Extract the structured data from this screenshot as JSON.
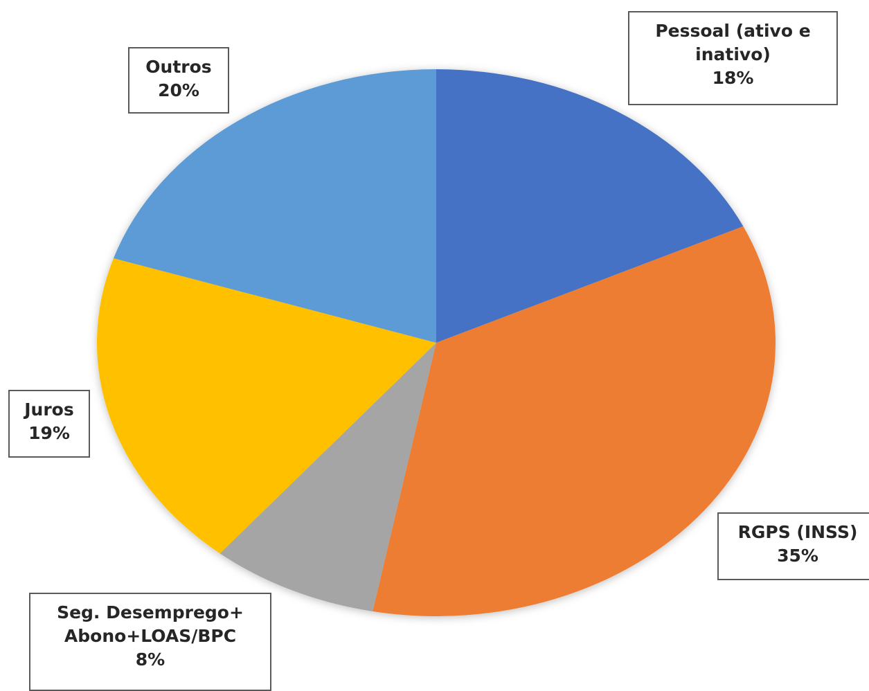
{
  "chart_data": {
    "type": "pie",
    "slices": [
      {
        "name": "Pessoal (ativo e inativo)",
        "label_lines": [
          "Pessoal (ativo e",
          "inativo)"
        ],
        "value": 18,
        "value_label": "18%",
        "color": "#4472C4"
      },
      {
        "name": "RGPS (INSS)",
        "label_lines": [
          "RGPS (INSS)"
        ],
        "value": 35,
        "value_label": "35%",
        "color": "#ED7D31"
      },
      {
        "name": "Seg. Desemprego+ Abono+LOAS/BPC",
        "label_lines": [
          "Seg. Desemprego+",
          "Abono+LOAS/BPC"
        ],
        "value": 8,
        "value_label": "8%",
        "color": "#A5A5A5"
      },
      {
        "name": "Juros",
        "label_lines": [
          "Juros"
        ],
        "value": 19,
        "value_label": "19%",
        "color": "#FFC000"
      },
      {
        "name": "Outros",
        "label_lines": [
          "Outros"
        ],
        "value": 20,
        "value_label": "20%",
        "color": "#5B9BD5"
      }
    ],
    "start": "12 o'clock",
    "direction": "clockwise"
  }
}
